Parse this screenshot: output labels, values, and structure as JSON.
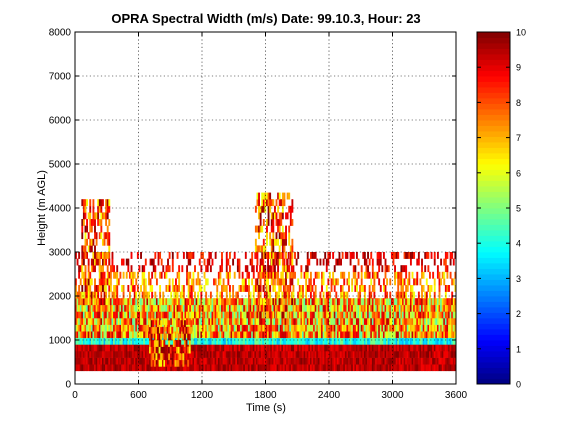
{
  "figure": {
    "title": "OPRA Spectral Width (m/s)  Date: 99.10.3, Hour: 23"
  },
  "chart_data": {
    "type": "heatmap",
    "title": "OPRA Spectral Width (m/s)  Date: 99.10.3, Hour: 23",
    "xlabel": "Time (s)",
    "ylabel": "Height (m AGL)",
    "xlim": [
      0,
      3600
    ],
    "ylim": [
      0,
      8000
    ],
    "x_ticks": [
      "0",
      "600",
      "1200",
      "1800",
      "2400",
      "3000",
      "3600"
    ],
    "y_ticks": [
      "0",
      "1000",
      "2000",
      "3000",
      "4000",
      "5000",
      "6000",
      "7000",
      "8000"
    ],
    "grid": true,
    "colormap": "jet",
    "colorbar": {
      "range": [
        0,
        10
      ],
      "ticks": [
        "0",
        "1",
        "2",
        "3",
        "4",
        "5",
        "6",
        "7",
        "8",
        "9",
        "10"
      ]
    },
    "value_range": [
      0,
      10
    ],
    "height_bands": [
      {
        "height_range": [
          300,
          900
        ],
        "typical_value": 10,
        "note": "saturated dark red"
      },
      {
        "height_range": [
          900,
          1000
        ],
        "typical_value": 4,
        "note": "cyan band"
      },
      {
        "height_range": [
          1000,
          2000
        ],
        "typical_value": 7,
        "note": "mixed yellow/orange/green"
      },
      {
        "height_range": [
          2000,
          2600
        ],
        "typical_value": 9,
        "note": "sparse red/orange"
      },
      {
        "height_range": [
          2600,
          3000
        ],
        "typical_value": 10,
        "note": "sparse dark red"
      }
    ],
    "features": [
      {
        "label": "plume near t=100-300 s",
        "time_range": [
          60,
          320
        ],
        "height_range": [
          1800,
          4200
        ]
      },
      {
        "label": "descending layer",
        "time_range": [
          700,
          1100
        ],
        "height_range": [
          400,
          1400
        ]
      },
      {
        "label": "plume near t=1700-2000 s",
        "time_range": [
          1700,
          2060
        ],
        "height_range": [
          1500,
          4300
        ]
      }
    ]
  }
}
